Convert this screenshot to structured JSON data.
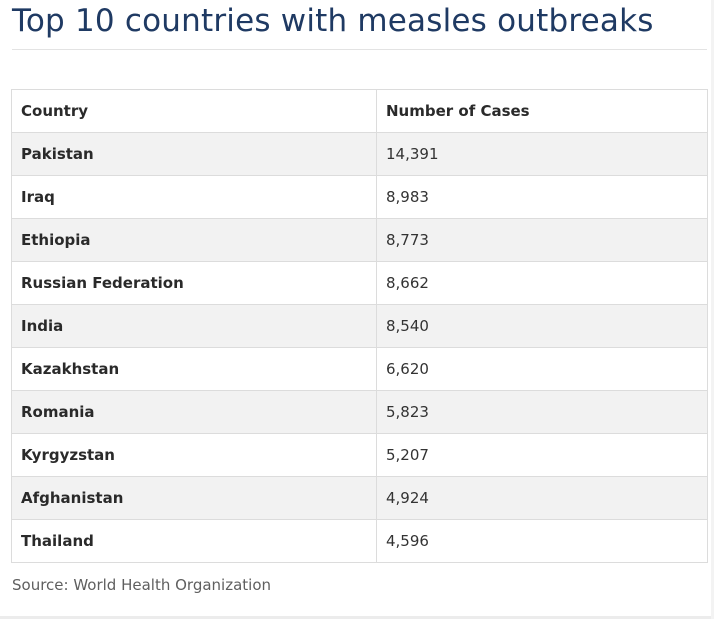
{
  "title": "Top 10 countries with measles outbreaks",
  "table": {
    "headers": {
      "country": "Country",
      "cases": "Number of Cases"
    },
    "rows": [
      {
        "country": "Pakistan",
        "cases": "14,391"
      },
      {
        "country": "Iraq",
        "cases": "8,983"
      },
      {
        "country": "Ethiopia",
        "cases": "8,773"
      },
      {
        "country": "Russian Federation",
        "cases": "8,662"
      },
      {
        "country": "India",
        "cases": "8,540"
      },
      {
        "country": "Kazakhstan",
        "cases": "6,620"
      },
      {
        "country": "Romania",
        "cases": "5,823"
      },
      {
        "country": "Kyrgyzstan",
        "cases": "5,207"
      },
      {
        "country": "Afghanistan",
        "cases": "4,924"
      },
      {
        "country": "Thailand",
        "cases": "4,596"
      }
    ]
  },
  "source": "Source: World Health Organization",
  "colors": {
    "title": "#1f3a63",
    "stripe": "#f2f2f2",
    "border": "#dcdcdc"
  }
}
